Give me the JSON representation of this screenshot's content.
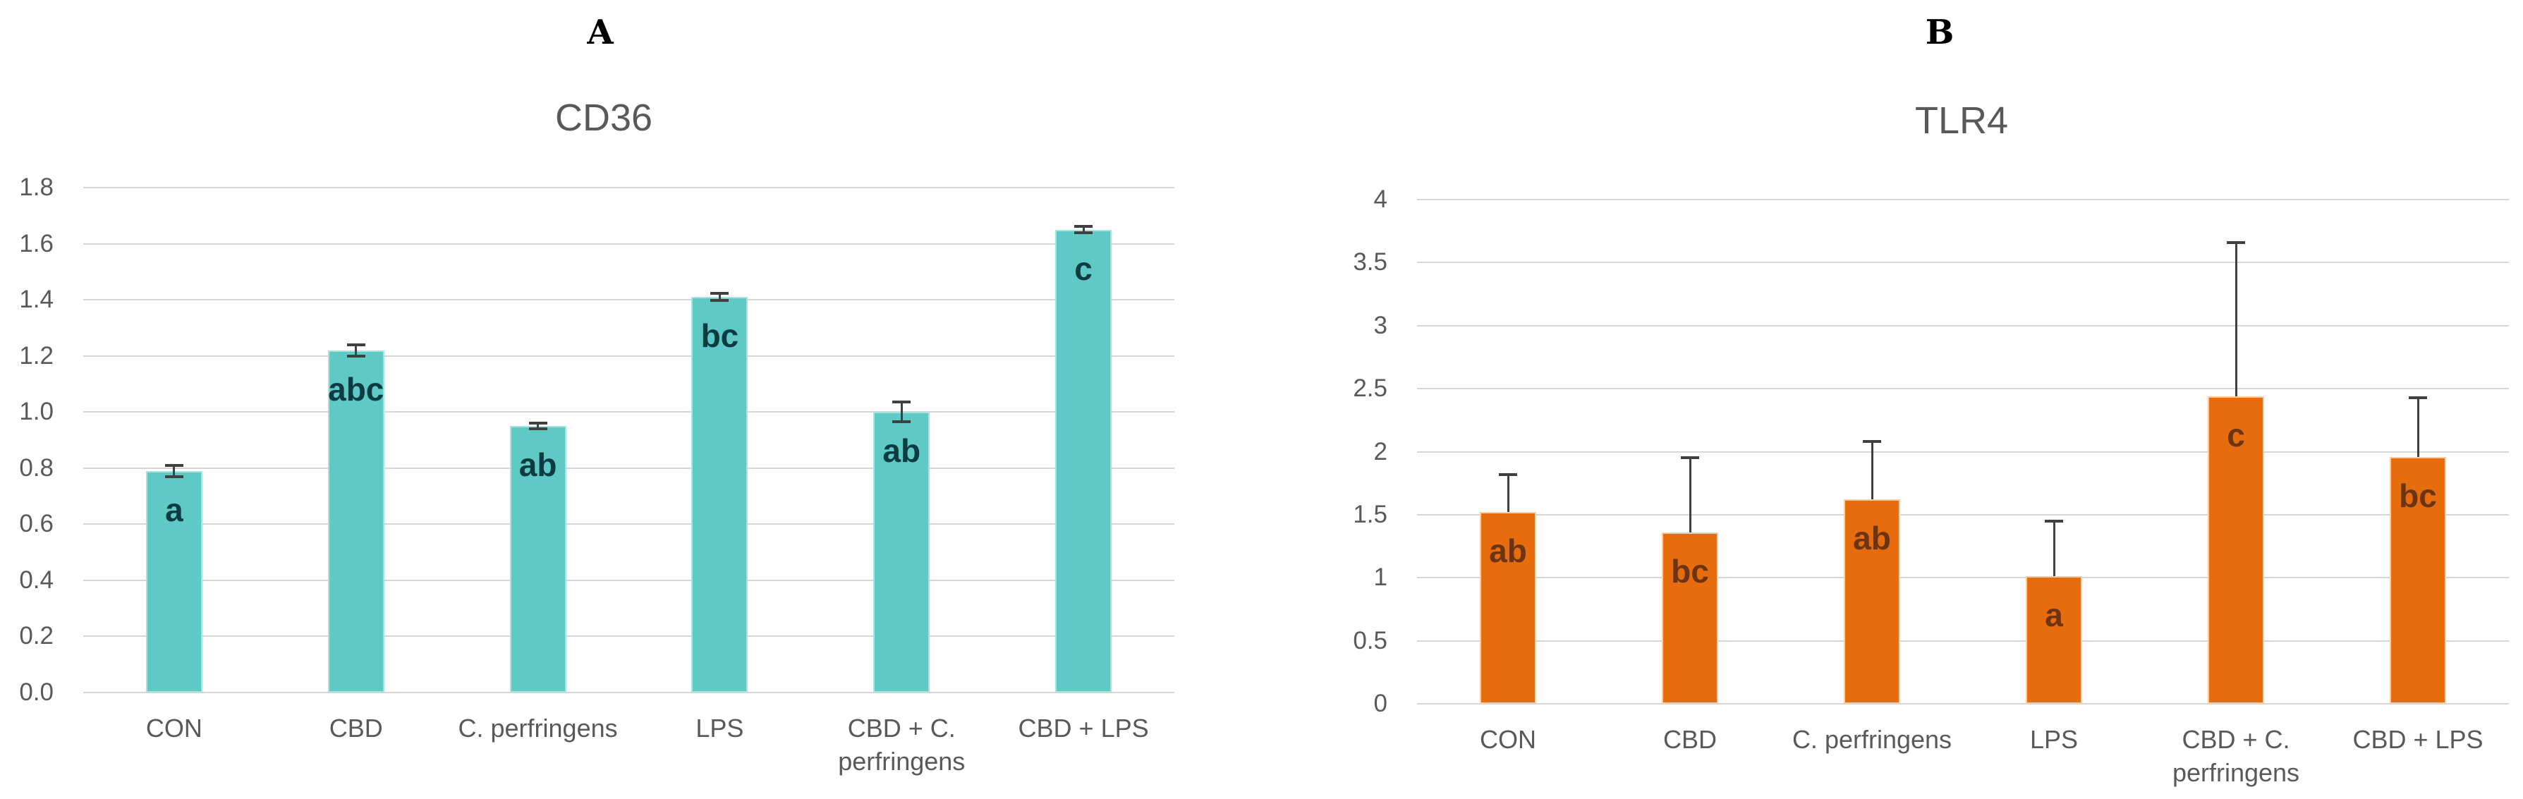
{
  "figure": {
    "background": "#ffffff",
    "gridline_color": "#d6d6d6",
    "axis_text_color": "#595959",
    "error_bar_color": "#404040"
  },
  "chart_data": [
    {
      "type": "bar",
      "panel_label": "A",
      "title": "CD36",
      "xlabel": "",
      "ylabel": "",
      "grid": true,
      "legend": "none",
      "ylim": [
        0,
        1.8
      ],
      "ytick_step": 0.2,
      "ytick_labels": [
        "0.0",
        "0.2",
        "0.4",
        "0.6",
        "0.8",
        "1.0",
        "1.2",
        "1.4",
        "1.6",
        "1.8"
      ],
      "categories": [
        "CON",
        "CBD",
        "C. perfringens",
        "LPS",
        "CBD + C.\nperfringens",
        "CBD + LPS"
      ],
      "values": [
        0.79,
        1.22,
        0.95,
        1.41,
        1.0,
        1.65
      ],
      "errors": [
        0.02,
        0.02,
        0.01,
        0.012,
        0.035,
        0.012
      ],
      "error_direction": "both",
      "sig_letters": [
        "a",
        "abc",
        "ab",
        "bc",
        "ab",
        "c"
      ],
      "bar_color": "#5ec9c5",
      "bar_edge_color": "#a9e3df",
      "letter_color": "#0d3b42"
    },
    {
      "type": "bar",
      "panel_label": "B",
      "title": "TLR4",
      "xlabel": "",
      "ylabel": "",
      "grid": true,
      "legend": "none",
      "ylim": [
        0,
        4
      ],
      "ytick_step": 0.5,
      "ytick_labels": [
        "0",
        "0.5",
        "1",
        "1.5",
        "2",
        "2.5",
        "3",
        "3.5",
        "4"
      ],
      "categories": [
        "CON",
        "CBD",
        "C. perfringens",
        "LPS",
        "CBD + C.\nperfringens",
        "CBD + LPS"
      ],
      "values": [
        1.52,
        1.36,
        1.62,
        1.01,
        2.44,
        1.96
      ],
      "errors": [
        0.3,
        0.59,
        0.46,
        0.44,
        1.22,
        0.47
      ],
      "error_direction": "up",
      "sig_letters": [
        "ab",
        "bc",
        "ab",
        "a",
        "c",
        "bc"
      ],
      "bar_color": "#e66c0d",
      "bar_edge_color": "#f6ceA4",
      "letter_color": "#6b3413"
    }
  ]
}
